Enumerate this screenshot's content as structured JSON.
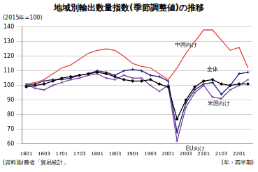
{
  "chart_data": {
    "type": "line",
    "title": "地域別輸出数量指数(季節調整値)の推移",
    "ylabel": "(2015年=100)",
    "xlabel": "(年・四半期)",
    "source": "(資料)財務省「貿易統計」",
    "categories": [
      "1601",
      null,
      "1603",
      null,
      "1701",
      null,
      "1703",
      null,
      "1801",
      null,
      "1803",
      null,
      "1901",
      null,
      "1903",
      null,
      "2001",
      null,
      "2003",
      null,
      "2101",
      null,
      "2103",
      null,
      "2201",
      null
    ],
    "series": [
      {
        "name": "中国向け",
        "color": "#e8423f",
        "marker": "none",
        "values": [
          101,
          102,
          104,
          108,
          112,
          114,
          118,
          122,
          124,
          125,
          124,
          120,
          115,
          113,
          112,
          108,
          104,
          112,
          122,
          130,
          138,
          138,
          131,
          124,
          126,
          112
        ]
      },
      {
        "name": "全体",
        "color": "#000000",
        "marker": "diamond",
        "values": [
          99,
          100,
          101,
          103,
          105,
          106,
          107,
          108,
          109,
          108,
          106,
          104,
          103,
          103,
          104,
          101,
          99,
          77,
          90,
          99,
          103,
          104,
          101,
          100,
          101,
          101
        ]
      },
      {
        "name": "米国向け",
        "color": "#1f1f7a",
        "marker": "cross",
        "values": [
          100,
          101,
          103,
          104,
          104,
          105,
          107,
          108,
          110,
          109,
          107,
          110,
          111,
          110,
          107,
          106,
          103,
          68,
          88,
          97,
          101,
          102,
          94,
          100,
          108,
          109
        ]
      },
      {
        "name": "EU向け",
        "color": "#7b3f9e",
        "marker": "x",
        "values": [
          101,
          98,
          97,
          100,
          102,
          104,
          105,
          107,
          108,
          105,
          104,
          107,
          105,
          105,
          100,
          96,
          100,
          62,
          85,
          95,
          100,
          92,
          91,
          97,
          100,
          104
        ]
      }
    ],
    "ylim": [
      60,
      140
    ],
    "yticks": [
      60,
      70,
      80,
      90,
      100,
      110,
      120,
      130,
      140
    ],
    "grid": true
  }
}
